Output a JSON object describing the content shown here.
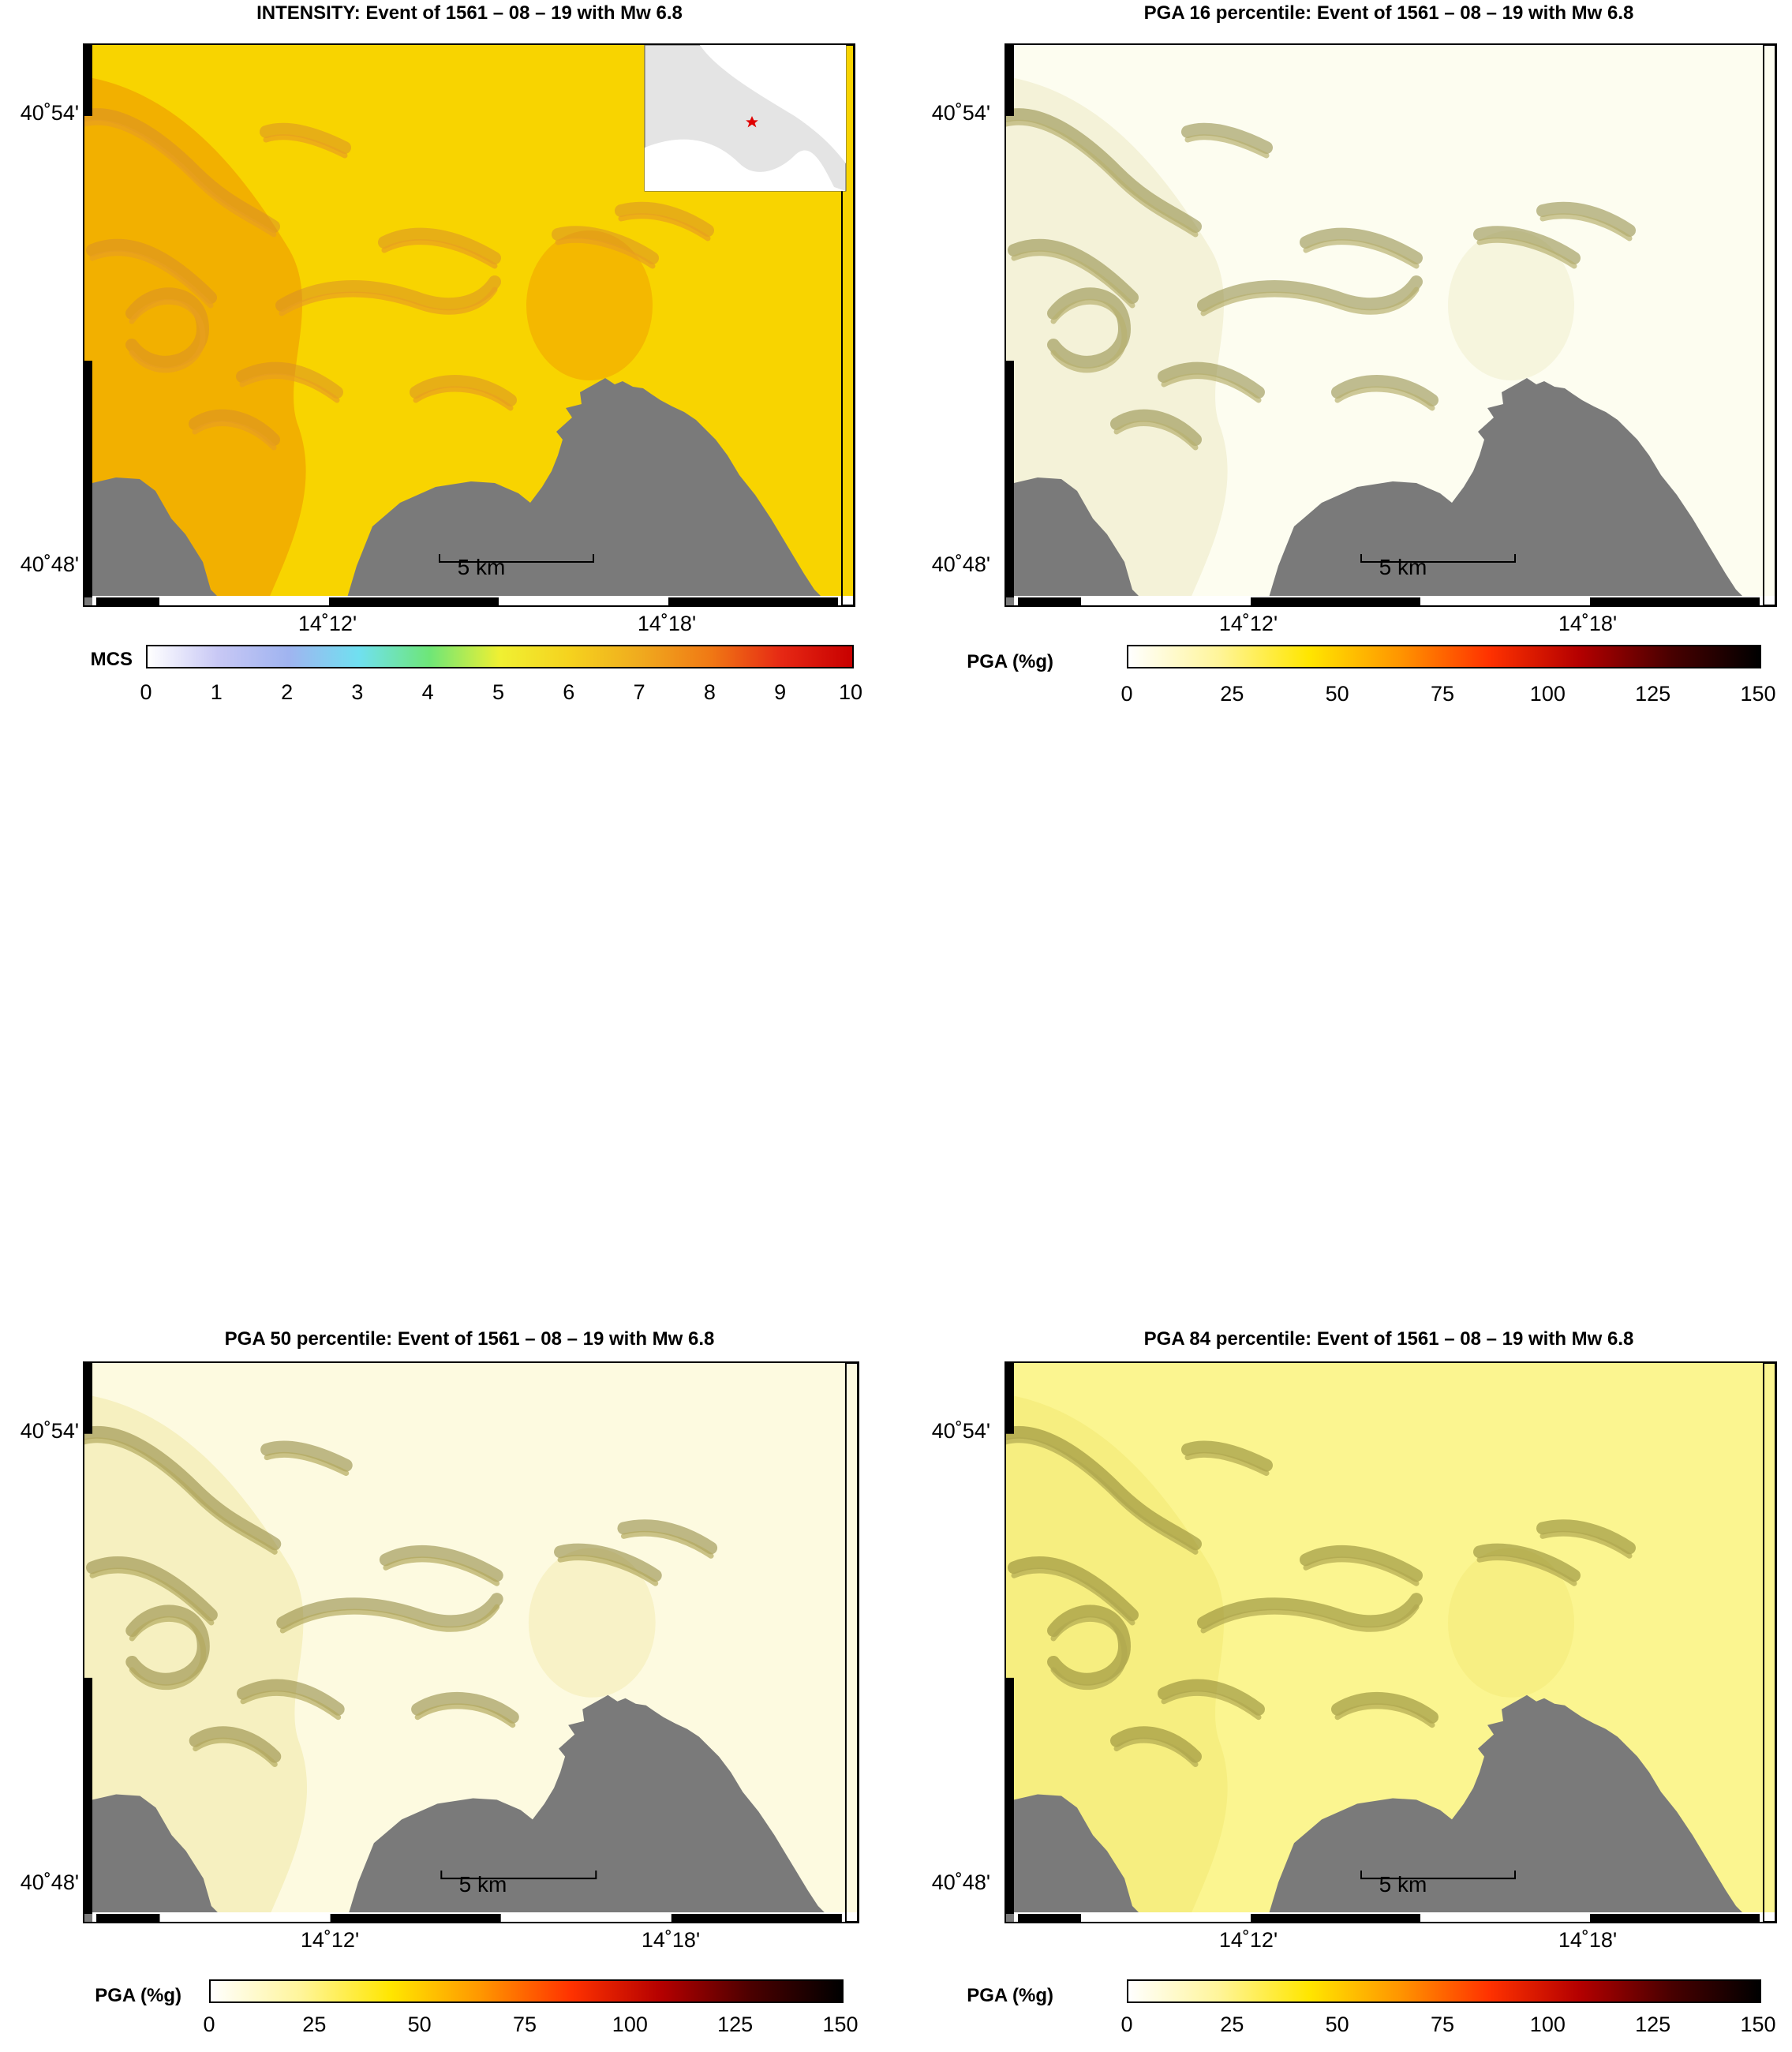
{
  "panels": [
    {
      "id": "intensity",
      "title": "INTENSITY: Event of 1561 – 08 – 19 with Mw 6.8",
      "lat_labels": [
        "40˚54'",
        "40˚48'"
      ],
      "lon_labels": [
        "14˚12'",
        "14˚18'"
      ],
      "scale_bar_label": "5 km",
      "colorbar": {
        "unit": "MCS",
        "ticks": [
          "0",
          "1",
          "2",
          "3",
          "4",
          "5",
          "6",
          "7",
          "8",
          "9",
          "10"
        ],
        "gradient": [
          "#ffffff",
          "#c8c8f5",
          "#a0b4f0",
          "#70e0f0",
          "#6ee678",
          "#f0f032",
          "#f5d21e",
          "#f0aa1e",
          "#f07814",
          "#e62814",
          "#c80000"
        ]
      },
      "inset": {
        "type": "locator-map-italy",
        "epicenter_marker": "red-star"
      },
      "land_colors": [
        "#f8d400",
        "#f2b000",
        "#e8a020",
        "#d99028"
      ],
      "sea_color": "#7a7a7a"
    },
    {
      "id": "pga16",
      "title": "PGA 16 percentile: Event of 1561 – 08 – 19 with Mw 6.8",
      "lat_labels": [
        "40˚54'",
        "40˚48'"
      ],
      "lon_labels": [
        "14˚12'",
        "14˚18'"
      ],
      "scale_bar_label": "5 km",
      "colorbar": {
        "unit": "PGA (%g)",
        "ticks": [
          "0",
          "25",
          "50",
          "75",
          "100",
          "125",
          "150"
        ],
        "gradient": [
          "#ffffff",
          "#fff59a",
          "#ffe600",
          "#ff9600",
          "#ff3200",
          "#b40000",
          "#4a0000",
          "#000000"
        ]
      },
      "land_colors": [
        "#fdfdf0",
        "#f4f2d8",
        "#b8b070",
        "#8c8640"
      ],
      "sea_color": "#7a7a7a"
    },
    {
      "id": "pga50",
      "title": "PGA 50 percentile: Event of 1561 – 08 – 19 with Mw 6.8",
      "lat_labels": [
        "40˚54'",
        "40˚48'"
      ],
      "lon_labels": [
        "14˚12'",
        "14˚18'"
      ],
      "scale_bar_label": "5 km",
      "colorbar": {
        "unit": "PGA (%g)",
        "ticks": [
          "0",
          "25",
          "50",
          "75",
          "100",
          "125",
          "150"
        ],
        "gradient": [
          "#ffffff",
          "#fff59a",
          "#ffe600",
          "#ff9600",
          "#ff3200",
          "#b40000",
          "#4a0000",
          "#000000"
        ]
      },
      "land_colors": [
        "#fdfae0",
        "#f6f0c0",
        "#b4aa60",
        "#8a8238"
      ],
      "sea_color": "#7a7a7a"
    },
    {
      "id": "pga84",
      "title": "PGA 84 percentile: Event of 1561 – 08 – 19 with Mw 6.8",
      "lat_labels": [
        "40˚54'",
        "40˚48'"
      ],
      "lon_labels": [
        "14˚12'",
        "14˚18'"
      ],
      "scale_bar_label": "5 km",
      "colorbar": {
        "unit": "PGA (%g)",
        "ticks": [
          "0",
          "25",
          "50",
          "75",
          "100",
          "125",
          "150"
        ],
        "gradient": [
          "#ffffff",
          "#fff59a",
          "#ffe600",
          "#ff9600",
          "#ff3200",
          "#b40000",
          "#4a0000",
          "#000000"
        ]
      },
      "land_colors": [
        "#fbf590",
        "#f6ee80",
        "#b0a850",
        "#86802e"
      ],
      "sea_color": "#7a7a7a"
    }
  ]
}
